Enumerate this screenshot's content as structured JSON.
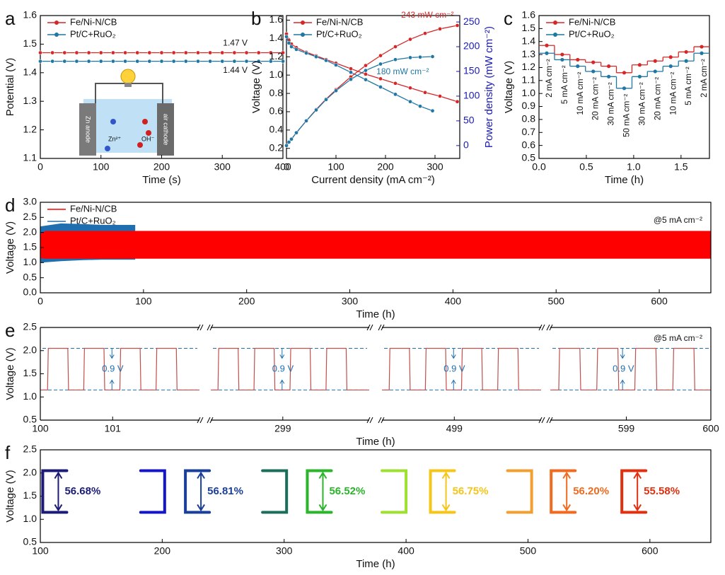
{
  "chart_data": [
    {
      "panel": "a",
      "type": "line",
      "x_label": "Time (s)",
      "y_label": "Potential (V)",
      "xlim": [
        0,
        400
      ],
      "xticks": [
        0,
        100,
        200,
        300,
        400
      ],
      "ylim": [
        1.1,
        1.6
      ],
      "yticks": [
        1.1,
        1.2,
        1.3,
        1.4,
        1.5,
        1.6
      ],
      "x": [
        0,
        20,
        40,
        60,
        80,
        100,
        120,
        140,
        160,
        180,
        200,
        220,
        240,
        260,
        280,
        300,
        320,
        340,
        360,
        380,
        400
      ],
      "series": [
        {
          "name": "Fe/Ni-N/CB",
          "color": "#d62728",
          "values": [
            1.47,
            1.47,
            1.47,
            1.47,
            1.47,
            1.47,
            1.47,
            1.47,
            1.47,
            1.47,
            1.47,
            1.47,
            1.47,
            1.47,
            1.47,
            1.47,
            1.47,
            1.47,
            1.47,
            1.47,
            1.47
          ]
        },
        {
          "name": "Pt/C+RuO₂",
          "color": "#1f77a4",
          "values": [
            1.44,
            1.44,
            1.44,
            1.44,
            1.44,
            1.44,
            1.44,
            1.44,
            1.44,
            1.44,
            1.44,
            1.44,
            1.44,
            1.44,
            1.44,
            1.44,
            1.44,
            1.44,
            1.44,
            1.44,
            1.44
          ]
        }
      ],
      "annotations": [
        "1.47 V",
        "1.44 V"
      ],
      "inset_labels": [
        "Zn anode",
        "Zn²⁺",
        "OH⁻",
        "air cathode"
      ]
    },
    {
      "panel": "b",
      "type": "line",
      "x_label": "Current density (mA cm⁻²)",
      "y_label": "Voltage (V)",
      "y2_label": "Power density (mW cm⁻²)",
      "y2_color": "#1a1ab4",
      "xlim": [
        0,
        350
      ],
      "xticks": [
        0,
        100,
        200,
        300
      ],
      "ylim": [
        0.09,
        1.65
      ],
      "yticks": [
        0.2,
        0.4,
        0.6,
        0.8,
        {
          "value": 1.0,
          "label": "1.0"
        },
        1.2,
        1.4,
        1.6
      ],
      "y2lim": [
        -26,
        263
      ],
      "y2ticks": [
        0,
        50,
        100,
        150,
        200,
        250
      ],
      "series": [
        {
          "name": "Fe/Ni-N/CB",
          "color": "#d62728",
          "x": [
            0,
            5,
            10,
            20,
            40,
            60,
            80,
            100,
            130,
            160,
            190,
            220,
            250,
            280,
            310,
            345
          ],
          "values": [
            1.45,
            1.38,
            1.34,
            1.3,
            1.25,
            1.21,
            1.17,
            1.13,
            1.07,
            1.01,
            0.96,
            0.91,
            0.86,
            0.81,
            0.77,
            0.71
          ]
        },
        {
          "name": "Pt/C+RuO₂",
          "color": "#1f77a4",
          "x": [
            0,
            5,
            10,
            20,
            40,
            60,
            80,
            100,
            130,
            160,
            190,
            220,
            250,
            270,
            295
          ],
          "values": [
            1.42,
            1.35,
            1.31,
            1.28,
            1.24,
            1.2,
            1.16,
            1.11,
            1.03,
            0.95,
            0.87,
            0.79,
            0.71,
            0.66,
            0.61
          ]
        },
        {
          "color": "#d62728",
          "axis": "y2",
          "x": [
            0,
            5,
            10,
            20,
            40,
            60,
            80,
            100,
            130,
            160,
            190,
            220,
            250,
            280,
            310,
            345
          ],
          "values": [
            0,
            7,
            13,
            26,
            50,
            73,
            94,
            113,
            139,
            162,
            182,
            200,
            215,
            227,
            236,
            243
          ]
        },
        {
          "color": "#1f77a4",
          "axis": "y2",
          "x": [
            0,
            5,
            10,
            20,
            40,
            60,
            80,
            100,
            130,
            160,
            190,
            220,
            250,
            270,
            295
          ],
          "values": [
            0,
            7,
            13,
            26,
            50,
            72,
            93,
            111,
            134,
            152,
            165,
            174,
            178,
            179,
            180
          ]
        }
      ],
      "annotations": [
        "243 mW cm⁻²",
        "180 mW cm⁻²"
      ]
    },
    {
      "panel": "c",
      "type": "step",
      "x_label": "Time (h)",
      "y_label": "Voltage (V)",
      "xlim": [
        0,
        1.8
      ],
      "xticks": [
        {
          "value": 0,
          "label": "0.0"
        },
        0.5,
        {
          "value": 1,
          "label": "1.0"
        },
        1.5
      ],
      "ylim": [
        0.5,
        1.6
      ],
      "yticks": [
        0.5,
        0.6,
        0.7,
        0.8,
        0.9,
        {
          "value": 1.0,
          "label": "1.0"
        },
        1.1,
        1.2,
        1.3,
        1.4,
        1.5,
        1.6
      ],
      "x": [
        0,
        0.164,
        0.327,
        0.491,
        0.655,
        0.818,
        0.982,
        1.145,
        1.309,
        1.473,
        1.636
      ],
      "series": [
        {
          "name": "Fe/Ni-N/CB",
          "color": "#d62728",
          "values": [
            1.37,
            1.3,
            1.26,
            1.24,
            1.21,
            1.16,
            1.22,
            1.25,
            1.28,
            1.32,
            1.36
          ]
        },
        {
          "name": "Pt/C+RuO₂",
          "color": "#1f77a4",
          "values": [
            1.31,
            1.26,
            1.21,
            1.17,
            1.13,
            1.04,
            1.13,
            1.17,
            1.21,
            1.25,
            1.31
          ]
        }
      ],
      "annotations": [
        "2 mA cm⁻²",
        "5 mA cm⁻²",
        "10 mA cm⁻²",
        "20 mA cm⁻²",
        "30 mA cm⁻²",
        "50 mA cm⁻²",
        "30 mA cm⁻²",
        "20 mA cm⁻²",
        "10 mA cm⁻²",
        "5 mA cm⁻²",
        "2 mA cm⁻²"
      ]
    },
    {
      "panel": "d",
      "type": "band",
      "x_label": "Time (h)",
      "y_label": "Voltage (V)",
      "xlim": [
        0,
        650
      ],
      "xticks": [
        0,
        100,
        200,
        300,
        400,
        500,
        600
      ],
      "ylim": [
        0,
        3.0
      ],
      "yticks": [
        {
          "value": 0,
          "label": "0.0"
        },
        0.5,
        {
          "value": 1,
          "label": "1.0"
        },
        1.5,
        {
          "value": 2,
          "label": "2.0"
        },
        2.5,
        {
          "value": 3,
          "label": "3.0"
        }
      ],
      "series": [
        {
          "name": "Fe/Ni-N/CB",
          "color": "#ff0000",
          "x": [
            0,
            5,
            650
          ],
          "upper": [
            1.95,
            2.05,
            2.05
          ],
          "lower": [
            1.15,
            1.13,
            1.13
          ]
        },
        {
          "name": "Pt/C+RuO₂",
          "color": "#1f6fb0",
          "x": [
            0,
            20,
            40,
            60,
            92
          ],
          "upper": [
            2.2,
            2.3,
            2.28,
            2.25,
            2.25
          ],
          "lower": [
            1.0,
            1.05,
            1.08,
            1.1,
            1.1
          ]
        }
      ],
      "annotation": "@5 mA cm⁻²"
    },
    {
      "panel": "e",
      "type": "broken_line",
      "x_label": "Time (h)",
      "y_label": "Voltage (V)",
      "color": "#c0504d",
      "ylim": [
        0.5,
        2.5
      ],
      "yticks": [
        0.5,
        {
          "value": 1,
          "label": "1.0"
        },
        1.5,
        {
          "value": 2,
          "label": "2.0"
        },
        2.5
      ],
      "reference_lines": [
        2.05,
        1.15
      ],
      "reference_color": "#1f6fb0",
      "annotation": "@5 mA cm⁻²",
      "segments": [
        {
          "xlim": [
            100,
            102.2
          ],
          "xticks": [
            100,
            101
          ],
          "annotation": "0.9 V",
          "x": [
            100.1,
            100.11,
            100.38,
            100.39,
            100.6,
            100.61,
            100.88,
            100.89,
            101.1,
            101.11,
            101.38,
            101.39,
            101.6,
            101.61,
            101.88,
            101.89
          ],
          "values": [
            1.15,
            2.05,
            2.05,
            1.15,
            1.15,
            2.05,
            2.05,
            1.15,
            1.15,
            2.05,
            2.05,
            1.15,
            1.15,
            2.05,
            2.05,
            1.15
          ]
        },
        {
          "xlim": [
            298,
            300.2
          ],
          "xticks": [
            299
          ],
          "annotation": "0.9 V",
          "x": [
            298.1,
            298.11,
            298.38,
            298.39,
            298.6,
            298.61,
            298.88,
            298.89,
            299.1,
            299.11,
            299.38,
            299.39,
            299.6,
            299.61,
            299.88,
            299.89
          ],
          "values": [
            1.15,
            2.05,
            2.05,
            1.15,
            1.15,
            2.05,
            2.05,
            1.15,
            1.15,
            2.05,
            2.05,
            1.15,
            1.15,
            2.05,
            2.05,
            1.15
          ]
        },
        {
          "xlim": [
            498,
            500.2
          ],
          "xticks": [
            499
          ],
          "annotation": "0.9 V",
          "x": [
            498.1,
            498.11,
            498.38,
            498.39,
            498.6,
            498.61,
            498.88,
            498.89,
            499.1,
            499.11,
            499.38,
            499.39,
            499.6,
            499.61,
            499.88,
            499.89
          ],
          "values": [
            1.15,
            2.05,
            2.05,
            1.15,
            1.15,
            2.05,
            2.05,
            1.15,
            1.15,
            2.05,
            2.05,
            1.15,
            1.15,
            2.05,
            2.05,
            1.15
          ]
        },
        {
          "xlim": [
            598.1,
            600
          ],
          "xticks": [
            599,
            600
          ],
          "annotation": "0.9 V",
          "x": [
            598.2,
            598.21,
            598.45,
            598.46,
            598.65,
            598.66,
            598.9,
            598.91,
            599.1,
            599.11,
            599.35,
            599.36,
            599.55,
            599.56,
            599.8,
            599.81
          ],
          "values": [
            1.15,
            2.05,
            2.05,
            1.15,
            1.15,
            2.05,
            2.05,
            1.15,
            1.15,
            2.05,
            2.05,
            1.15,
            1.15,
            2.05,
            2.05,
            1.15
          ]
        }
      ]
    },
    {
      "panel": "f",
      "type": "bracket",
      "x_label": "Time (h)",
      "y_label": "Voltage (V)",
      "xlim": [
        100,
        650
      ],
      "xticks": [
        100,
        200,
        300,
        400,
        500,
        600
      ],
      "ylim": [
        0.5,
        2.5
      ],
      "yticks": [
        0.5,
        {
          "value": 1,
          "label": "1.0"
        },
        1.5,
        {
          "value": 2,
          "label": "2.0"
        },
        2.5
      ],
      "charge_voltage": 2.05,
      "discharge_voltage": 1.15,
      "x": [
        102,
        202,
        219,
        302,
        319,
        400,
        420,
        503,
        519,
        577
      ],
      "values": [
        56.68,
        null,
        56.81,
        null,
        56.52,
        null,
        56.75,
        null,
        56.2,
        55.58
      ],
      "value_labels": [
        "56.68%",
        null,
        "56.81%",
        null,
        "56.52%",
        null,
        "56.75%",
        null,
        "56.20%",
        "55.58%"
      ],
      "colors": [
        "#1c1c78",
        "#1414c8",
        "#1a3f9a",
        "#1a6e5a",
        "#2ab52a",
        "#9ee030",
        "#f5c518",
        "#f0a030",
        "#f06a20",
        "#e03010"
      ]
    }
  ]
}
